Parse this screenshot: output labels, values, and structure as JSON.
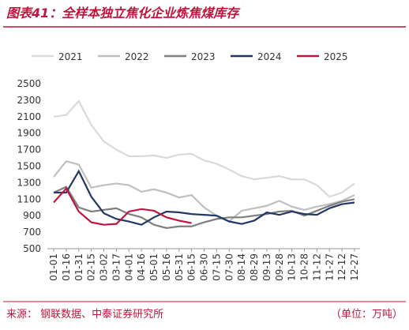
{
  "chart_data": {
    "type": "line",
    "title": "图表41：全样本独立焦化企业炼焦煤库存",
    "source": "来源：  钢联数据、中泰证券研究所",
    "unit": "（单位：万吨）",
    "categories": [
      "01-01",
      "01-16",
      "01-31",
      "02-15",
      "03-02",
      "03-17",
      "04-01",
      "04-16",
      "05-01",
      "05-16",
      "05-31",
      "06-15",
      "06-30",
      "07-15",
      "07-30",
      "08-14",
      "08-29",
      "09-13",
      "09-28",
      "10-13",
      "10-28",
      "11-12",
      "11-27",
      "12-12",
      "12-27"
    ],
    "series": [
      {
        "name": "2021",
        "color": "#d9d9d9",
        "values": [
          2100,
          2120,
          2290,
          2000,
          1800,
          1700,
          1620,
          1620,
          1630,
          1600,
          1640,
          1650,
          1570,
          1530,
          1460,
          1380,
          1340,
          1360,
          1380,
          1340,
          1340,
          1270,
          1130,
          1180,
          1290
        ]
      },
      {
        "name": "2022",
        "color": "#bfbfbf",
        "values": [
          1370,
          1560,
          1520,
          1240,
          1270,
          1290,
          1270,
          1190,
          1220,
          1180,
          1120,
          1150,
          1000,
          900,
          830,
          960,
          990,
          1020,
          1080,
          1010,
          970,
          1010,
          1040,
          1080,
          1150
        ]
      },
      {
        "name": "2023",
        "color": "#7f7f7f",
        "values": [
          1180,
          1250,
          1000,
          950,
          970,
          990,
          920,
          880,
          790,
          750,
          770,
          770,
          820,
          860,
          880,
          880,
          900,
          920,
          950,
          960,
          900,
          960,
          1020,
          1070,
          1100
        ]
      },
      {
        "name": "2024",
        "color": "#1f3864",
        "values": [
          1180,
          1180,
          1440,
          1130,
          930,
          860,
          830,
          790,
          880,
          950,
          940,
          920,
          910,
          900,
          830,
          800,
          840,
          940,
          910,
          950,
          920,
          910,
          990,
          1040,
          1060
        ]
      },
      {
        "name": "2025",
        "color": "#c0143c",
        "values": [
          1060,
          1230,
          950,
          820,
          790,
          800,
          950,
          980,
          960,
          880,
          840,
          810,
          null,
          null,
          null,
          null,
          null,
          null,
          null,
          null,
          null,
          null,
          null,
          null,
          null
        ]
      }
    ],
    "ylim": [
      500,
      2500
    ],
    "yticks": [
      500,
      700,
      900,
      1100,
      1300,
      1500,
      1700,
      1900,
      2100,
      2300,
      2500
    ]
  }
}
